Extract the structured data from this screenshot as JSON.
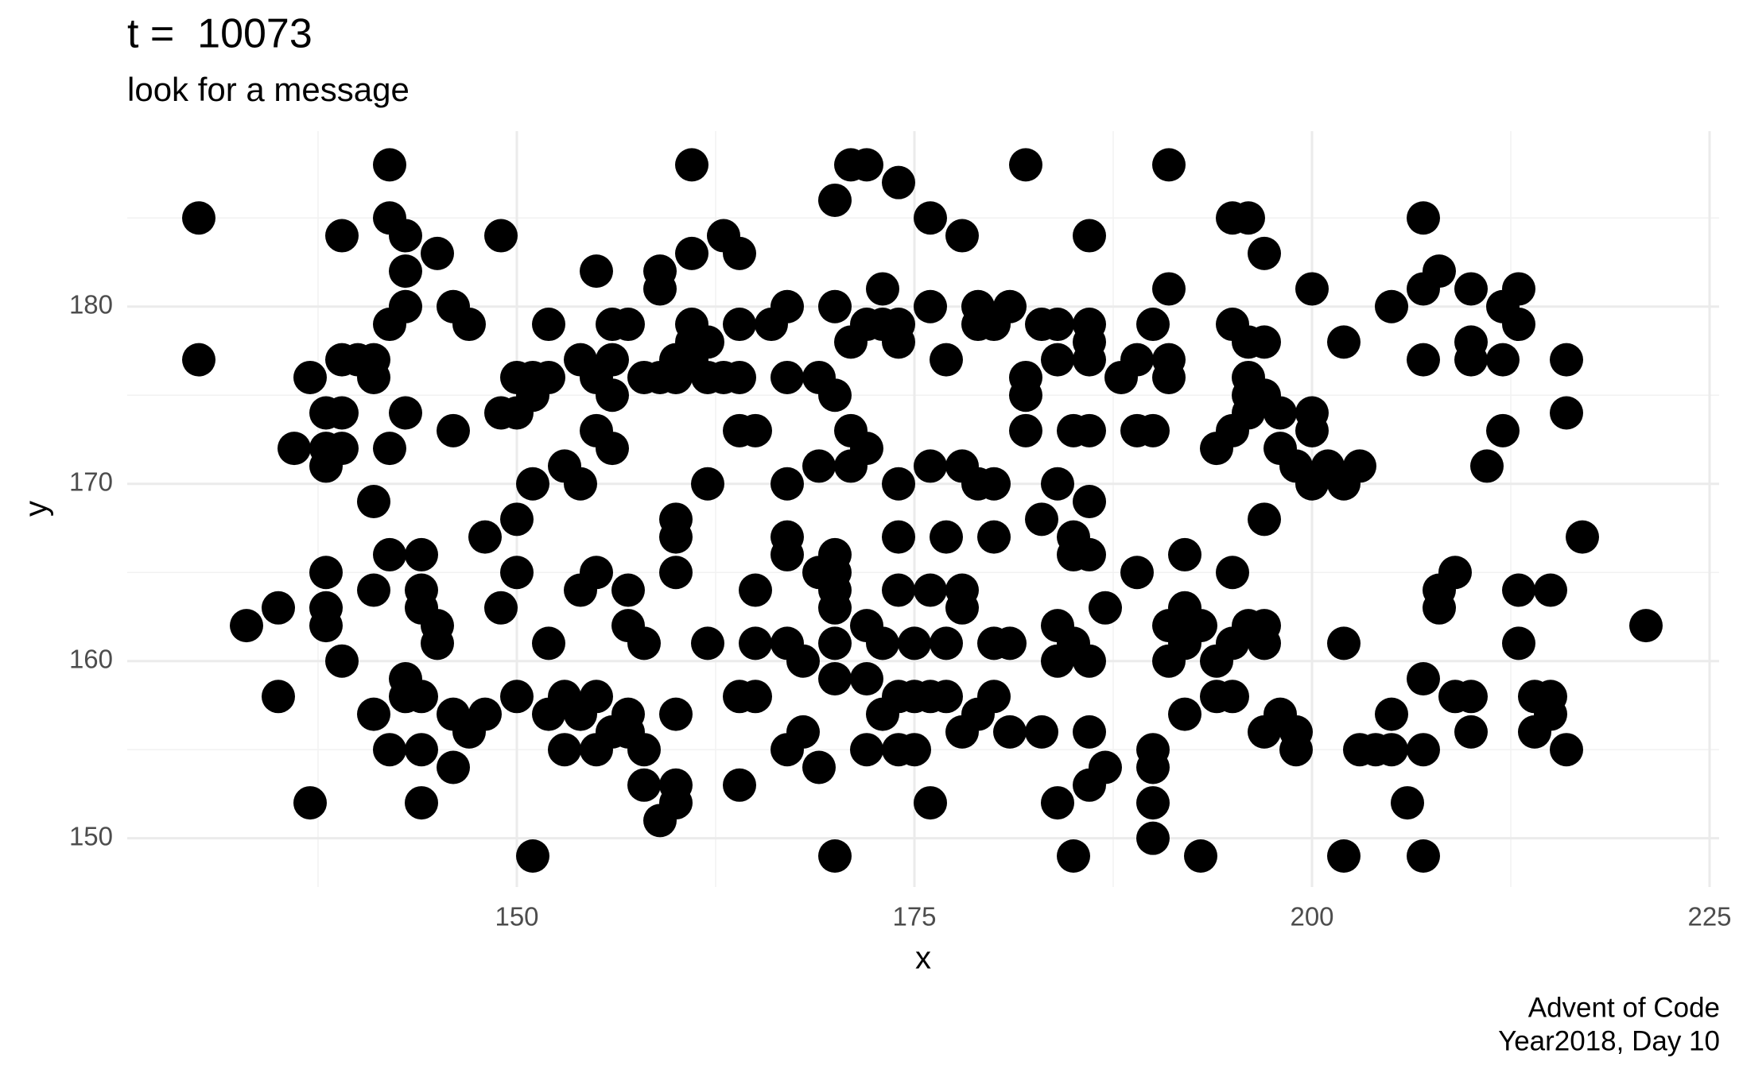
{
  "chart_data": {
    "type": "scatter",
    "title": "t =  10073",
    "subtitle": "look for a message",
    "xlabel": "x",
    "ylabel": "y",
    "caption": [
      "Advent of Code",
      "Year2018, Day 10"
    ],
    "color": "#000000",
    "xlim": [
      125.5,
      225.6
    ],
    "ylim": [
      147.25,
      189.9
    ],
    "xticks": [
      150,
      175,
      200,
      225
    ],
    "yticks": [
      150,
      160,
      170,
      180
    ],
    "x_minor_ticks": [
      137.5,
      162.5,
      187.5,
      212.5
    ],
    "y_minor_ticks": [
      155,
      165,
      175,
      185
    ],
    "grid": true,
    "x": [
      130,
      130,
      133,
      135,
      135,
      136,
      137,
      137,
      138,
      138,
      138,
      138,
      138,
      138,
      139,
      139,
      139,
      139,
      139,
      140,
      141,
      141,
      141,
      141,
      141,
      142,
      142,
      142,
      142,
      142,
      142,
      143,
      143,
      143,
      143,
      143,
      143,
      144,
      144,
      144,
      144,
      144,
      144,
      145,
      145,
      145,
      146,
      146,
      146,
      146,
      147,
      147,
      148,
      148,
      149,
      149,
      149,
      150,
      150,
      150,
      150,
      150,
      151,
      151,
      151,
      151,
      152,
      152,
      152,
      152,
      153,
      153,
      153,
      154,
      154,
      154,
      154,
      155,
      155,
      155,
      155,
      155,
      155,
      156,
      156,
      156,
      156,
      156,
      157,
      157,
      157,
      157,
      157,
      158,
      158,
      158,
      158,
      159,
      159,
      159,
      159,
      160,
      160,
      160,
      160,
      160,
      160,
      160,
      160,
      161,
      161,
      161,
      161,
      161,
      162,
      162,
      162,
      162,
      163,
      163,
      164,
      164,
      164,
      164,
      164,
      164,
      165,
      165,
      165,
      165,
      166,
      167,
      167,
      167,
      167,
      167,
      167,
      167,
      168,
      168,
      169,
      169,
      169,
      169,
      170,
      170,
      170,
      170,
      170,
      170,
      170,
      170,
      170,
      170,
      171,
      171,
      171,
      171,
      172,
      172,
      172,
      172,
      172,
      172,
      173,
      173,
      173,
      173,
      174,
      174,
      174,
      174,
      174,
      174,
      174,
      174,
      175,
      175,
      175,
      176,
      176,
      176,
      176,
      176,
      176,
      177,
      177,
      177,
      177,
      178,
      178,
      178,
      178,
      178,
      179,
      179,
      179,
      179,
      180,
      180,
      180,
      180,
      180,
      181,
      181,
      181,
      182,
      182,
      182,
      182,
      183,
      183,
      183,
      184,
      184,
      184,
      184,
      184,
      184,
      185,
      185,
      185,
      185,
      185,
      186,
      186,
      186,
      186,
      186,
      186,
      186,
      186,
      186,
      186,
      187,
      187,
      188,
      189,
      189,
      189,
      190,
      190,
      190,
      190,
      190,
      190,
      191,
      191,
      191,
      191,
      191,
      191,
      192,
      192,
      192,
      192,
      193,
      193,
      194,
      194,
      194,
      195,
      195,
      195,
      195,
      195,
      195,
      196,
      196,
      196,
      196,
      196,
      196,
      197,
      197,
      197,
      197,
      197,
      197,
      197,
      198,
      198,
      198,
      199,
      199,
      199,
      200,
      200,
      200,
      200,
      201,
      202,
      202,
      202,
      202,
      203,
      203,
      204,
      205,
      205,
      205,
      206,
      207,
      207,
      207,
      207,
      207,
      207,
      208,
      208,
      208,
      209,
      209,
      210,
      210,
      210,
      210,
      210,
      211,
      212,
      212,
      212,
      213,
      213,
      213,
      213,
      214,
      214,
      215,
      215,
      215,
      216,
      216,
      216,
      217,
      221
    ],
    "y": [
      185,
      177,
      162,
      163,
      158,
      172,
      176,
      152,
      172,
      171,
      174,
      165,
      163,
      162,
      184,
      177,
      174,
      172,
      160,
      177,
      177,
      176,
      169,
      164,
      157,
      188,
      185,
      179,
      172,
      166,
      155,
      184,
      182,
      180,
      174,
      159,
      158,
      164,
      163,
      166,
      158,
      155,
      152,
      183,
      162,
      161,
      180,
      173,
      157,
      154,
      179,
      156,
      167,
      157,
      184,
      174,
      163,
      176,
      174,
      168,
      165,
      158,
      176,
      175,
      170,
      149,
      176,
      179,
      161,
      157,
      171,
      158,
      155,
      177,
      170,
      164,
      157,
      182,
      176,
      173,
      165,
      158,
      155,
      177,
      175,
      179,
      172,
      156,
      179,
      164,
      162,
      157,
      156,
      176,
      161,
      155,
      153,
      182,
      181,
      176,
      151,
      176,
      177,
      168,
      167,
      165,
      157,
      153,
      152,
      188,
      183,
      179,
      178,
      177,
      178,
      176,
      170,
      161,
      184,
      176,
      183,
      179,
      176,
      173,
      158,
      153,
      173,
      164,
      161,
      158,
      179,
      180,
      176,
      170,
      167,
      166,
      161,
      155,
      160,
      156,
      176,
      171,
      165,
      154,
      186,
      180,
      175,
      166,
      164,
      163,
      165,
      161,
      159,
      149,
      188,
      178,
      173,
      171,
      188,
      179,
      172,
      162,
      159,
      155,
      181,
      179,
      161,
      157,
      187,
      179,
      178,
      170,
      167,
      164,
      158,
      155,
      158,
      161,
      155,
      185,
      180,
      171,
      164,
      158,
      152,
      177,
      167,
      161,
      158,
      184,
      171,
      164,
      163,
      156,
      180,
      179,
      170,
      157,
      179,
      170,
      167,
      161,
      158,
      180,
      161,
      156,
      188,
      176,
      175,
      173,
      179,
      168,
      156,
      179,
      177,
      170,
      162,
      160,
      152,
      173,
      167,
      166,
      161,
      149,
      184,
      179,
      178,
      177,
      173,
      169,
      166,
      160,
      156,
      153,
      163,
      154,
      176,
      177,
      173,
      165,
      179,
      173,
      155,
      154,
      152,
      150,
      188,
      181,
      177,
      176,
      162,
      160,
      166,
      163,
      161,
      157,
      162,
      149,
      172,
      160,
      158,
      185,
      179,
      173,
      165,
      161,
      158,
      185,
      176,
      175,
      174,
      162,
      178,
      183,
      178,
      175,
      168,
      162,
      161,
      156,
      172,
      157,
      174,
      171,
      156,
      155,
      181,
      174,
      173,
      170,
      171,
      178,
      170,
      161,
      149,
      171,
      155,
      155,
      180,
      157,
      155,
      152,
      185,
      181,
      177,
      159,
      155,
      149,
      182,
      164,
      163,
      165,
      158,
      181,
      178,
      177,
      158,
      156,
      171,
      180,
      177,
      173,
      181,
      179,
      164,
      161,
      158,
      156,
      157,
      158,
      164,
      177,
      174,
      155,
      167,
      162
    ]
  }
}
